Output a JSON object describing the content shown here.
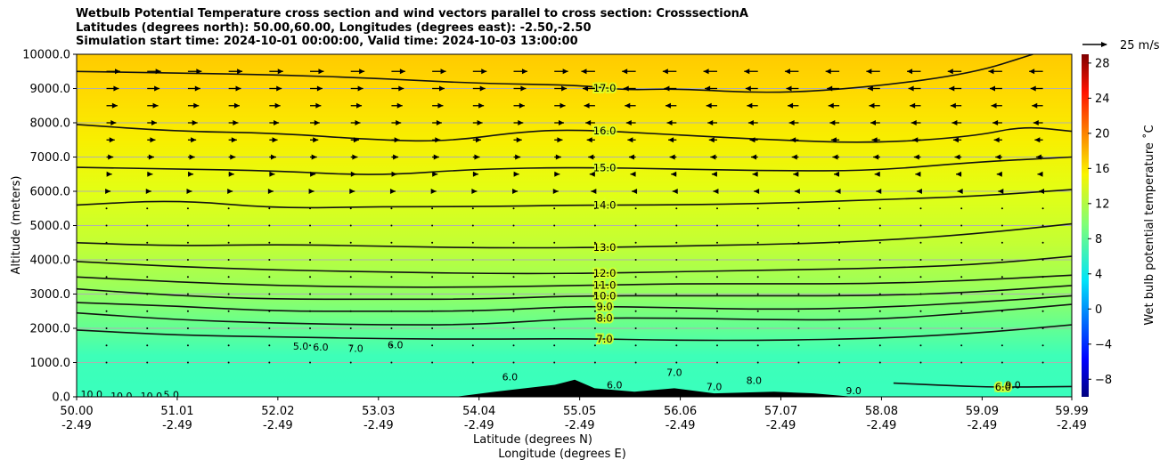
{
  "chart_data": {
    "type": "heatmap",
    "title_lines": [
      "Wetbulb Potential Temperature cross section and wind vectors parallel to cross section: CrosssectionA",
      "Latitudes (degrees north): 50.00,60.00, Longitudes (degrees east): -2.50,-2.50",
      "Simulation start time: 2024-10-01 00:00:00, Valid time: 2024-10-03 13:00:00"
    ],
    "xlabel": "Latitude (degrees N)",
    "xlabel2": "Longitude (degrees E)",
    "ylabel": "Altitude (meters)",
    "colorbar_label": "Wet bulb potential temperature $^\\circ$C",
    "colorbar_label_text": "Wet bulb potential temperature ˚C",
    "x_ticks": [
      {
        "lat": "50.00",
        "lon": "-2.49",
        "value": 50.0
      },
      {
        "lat": "51.01",
        "lon": "-2.49",
        "value": 51.01
      },
      {
        "lat": "52.02",
        "lon": "-2.49",
        "value": 52.02
      },
      {
        "lat": "53.03",
        "lon": "-2.49",
        "value": 53.03
      },
      {
        "lat": "54.04",
        "lon": "-2.49",
        "value": 54.04
      },
      {
        "lat": "55.05",
        "lon": "-2.49",
        "value": 55.05
      },
      {
        "lat": "56.06",
        "lon": "-2.49",
        "value": 56.06
      },
      {
        "lat": "57.07",
        "lon": "-2.49",
        "value": 57.07
      },
      {
        "lat": "58.08",
        "lon": "-2.49",
        "value": 58.08
      },
      {
        "lat": "59.09",
        "lon": "-2.49",
        "value": 59.09
      },
      {
        "lat": "59.99",
        "lon": "-2.49",
        "value": 59.99
      }
    ],
    "xlim": [
      50.0,
      59.99
    ],
    "y_ticks": [
      "0.0",
      "1000.0",
      "2000.0",
      "3000.0",
      "4000.0",
      "5000.0",
      "6000.0",
      "7000.0",
      "8000.0",
      "9000.0",
      "10000.0"
    ],
    "ylim": [
      0,
      10000
    ],
    "colorbar_ticks": [
      "−8",
      "−4",
      "0",
      "4",
      "8",
      "12",
      "16",
      "20",
      "24",
      "28"
    ],
    "colorbar_tick_values": [
      -8,
      -4,
      0,
      4,
      8,
      12,
      16,
      20,
      24,
      28
    ],
    "colorbar_range": [
      -10,
      29
    ],
    "colormap": "jet",
    "grid": "horizontal",
    "quiver_key_label": "25 m/s",
    "contours": [
      {
        "value": 6.0,
        "label": "6.0",
        "points": [
          [
            58.2,
            400
          ],
          [
            58.8,
            320
          ],
          [
            59.3,
            280
          ],
          [
            59.99,
            300
          ]
        ]
      },
      {
        "value": 7.0,
        "label": "7.0",
        "points": [
          [
            50.0,
            1950
          ],
          [
            51.0,
            1800
          ],
          [
            52.0,
            1750
          ],
          [
            53.0,
            1700
          ],
          [
            54.0,
            1680
          ],
          [
            55.05,
            1700
          ],
          [
            56.0,
            1650
          ],
          [
            57.0,
            1650
          ],
          [
            58.0,
            1700
          ],
          [
            59.0,
            1850
          ],
          [
            59.99,
            2100
          ]
        ]
      },
      {
        "value": 8.0,
        "label": "8.0",
        "points": [
          [
            50.0,
            2450
          ],
          [
            51.0,
            2250
          ],
          [
            52.0,
            2150
          ],
          [
            53.0,
            2100
          ],
          [
            54.0,
            2100
          ],
          [
            55.05,
            2300
          ],
          [
            56.0,
            2300
          ],
          [
            57.0,
            2250
          ],
          [
            58.0,
            2250
          ],
          [
            59.0,
            2450
          ],
          [
            59.99,
            2700
          ]
        ]
      },
      {
        "value": 9.0,
        "label": "9.0",
        "points": [
          [
            50.0,
            2750
          ],
          [
            51.0,
            2650
          ],
          [
            52.0,
            2500
          ],
          [
            53.0,
            2500
          ],
          [
            54.0,
            2500
          ],
          [
            55.05,
            2650
          ],
          [
            56.0,
            2600
          ],
          [
            57.0,
            2550
          ],
          [
            58.0,
            2600
          ],
          [
            59.0,
            2750
          ],
          [
            59.99,
            2950
          ]
        ]
      },
      {
        "value": 10.0,
        "label": "10.0",
        "points": [
          [
            50.0,
            3150
          ],
          [
            51.0,
            2950
          ],
          [
            52.0,
            2850
          ],
          [
            53.0,
            2850
          ],
          [
            54.0,
            2850
          ],
          [
            55.05,
            2950
          ],
          [
            56.0,
            2950
          ],
          [
            57.0,
            2950
          ],
          [
            58.0,
            2950
          ],
          [
            59.0,
            3050
          ],
          [
            59.99,
            3250
          ]
        ]
      },
      {
        "value": 11.0,
        "label": "11.0",
        "points": [
          [
            50.0,
            3500
          ],
          [
            51.0,
            3350
          ],
          [
            52.0,
            3250
          ],
          [
            53.0,
            3200
          ],
          [
            54.0,
            3200
          ],
          [
            55.05,
            3250
          ],
          [
            56.0,
            3300
          ],
          [
            57.0,
            3300
          ],
          [
            58.0,
            3300
          ],
          [
            59.0,
            3400
          ],
          [
            59.99,
            3550
          ]
        ]
      },
      {
        "value": 12.0,
        "label": "12.0",
        "points": [
          [
            50.0,
            3950
          ],
          [
            51.0,
            3800
          ],
          [
            52.0,
            3700
          ],
          [
            53.0,
            3650
          ],
          [
            54.0,
            3600
          ],
          [
            55.05,
            3600
          ],
          [
            56.0,
            3650
          ],
          [
            57.0,
            3700
          ],
          [
            58.0,
            3750
          ],
          [
            59.0,
            3850
          ],
          [
            59.99,
            4100
          ]
        ]
      },
      {
        "value": 13.0,
        "label": "13.0",
        "points": [
          [
            50.0,
            4500
          ],
          [
            51.0,
            4400
          ],
          [
            52.0,
            4450
          ],
          [
            53.0,
            4400
          ],
          [
            54.0,
            4350
          ],
          [
            55.05,
            4350
          ],
          [
            56.0,
            4400
          ],
          [
            57.0,
            4450
          ],
          [
            58.0,
            4550
          ],
          [
            59.0,
            4750
          ],
          [
            59.99,
            5050
          ]
        ]
      },
      {
        "value": 14.0,
        "label": "14.0",
        "points": [
          [
            50.0,
            5600
          ],
          [
            51.0,
            5750
          ],
          [
            52.0,
            5500
          ],
          [
            53.0,
            5550
          ],
          [
            54.0,
            5550
          ],
          [
            55.05,
            5600
          ],
          [
            56.0,
            5600
          ],
          [
            57.0,
            5650
          ],
          [
            58.0,
            5750
          ],
          [
            59.0,
            5850
          ],
          [
            59.99,
            6050
          ]
        ]
      },
      {
        "value": 15.0,
        "label": "15.0",
        "points": [
          [
            50.0,
            6700
          ],
          [
            51.0,
            6650
          ],
          [
            52.0,
            6600
          ],
          [
            53.0,
            6450
          ],
          [
            54.0,
            6650
          ],
          [
            55.05,
            6700
          ],
          [
            56.0,
            6650
          ],
          [
            57.0,
            6600
          ],
          [
            58.0,
            6600
          ],
          [
            59.0,
            6850
          ],
          [
            59.99,
            7000
          ]
        ]
      },
      {
        "value": 16.0,
        "label": "16.0",
        "points": [
          [
            50.0,
            7950
          ],
          [
            51.0,
            7750
          ],
          [
            52.0,
            7700
          ],
          [
            53.0,
            7500
          ],
          [
            53.7,
            7450
          ],
          [
            54.5,
            7750
          ],
          [
            55.05,
            7800
          ],
          [
            56.0,
            7650
          ],
          [
            57.0,
            7500
          ],
          [
            58.0,
            7400
          ],
          [
            59.0,
            7600
          ],
          [
            59.5,
            7900
          ],
          [
            59.99,
            7750
          ]
        ]
      },
      {
        "value": 17.0,
        "label": "17.0",
        "points": [
          [
            50.0,
            9500
          ],
          [
            51.0,
            9450
          ],
          [
            52.0,
            9400
          ],
          [
            53.0,
            9300
          ],
          [
            54.0,
            9150
          ],
          [
            55.05,
            9100
          ],
          [
            55.5,
            8950
          ],
          [
            56.0,
            9000
          ],
          [
            57.0,
            8850
          ],
          [
            58.0,
            9050
          ],
          [
            59.0,
            9450
          ],
          [
            59.6,
            10000
          ]
        ]
      }
    ],
    "contour_labels_extra": [
      "10.0",
      "10.0",
      "10.0",
      "5.0",
      "5.0",
      "6.0",
      "7.0",
      "6.0",
      "6.0",
      "6.0",
      "7.0",
      "7.0",
      "8.0",
      "9.0",
      "9.0"
    ],
    "terrain_lat_m": [
      [
        50.0,
        0
      ],
      [
        53.8,
        0
      ],
      [
        54.2,
        150
      ],
      [
        54.5,
        250
      ],
      [
        54.8,
        350
      ],
      [
        55.0,
        500
      ],
      [
        55.2,
        250
      ],
      [
        55.6,
        150
      ],
      [
        56.0,
        250
      ],
      [
        56.4,
        100
      ],
      [
        57.0,
        150
      ],
      [
        57.4,
        100
      ],
      [
        57.8,
        0
      ],
      [
        59.99,
        0
      ]
    ]
  }
}
